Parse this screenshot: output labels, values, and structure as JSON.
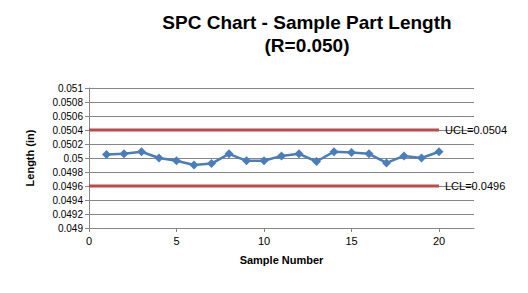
{
  "chart_data": {
    "type": "line",
    "title": "SPC Chart - Sample Part Length",
    "subtitle": "(R=0.050)",
    "x_label": "Sample Number",
    "y_label": "Length (in)",
    "xlim": [
      0,
      22
    ],
    "xticks": [
      0,
      5,
      10,
      15,
      20
    ],
    "ylim": [
      0.049,
      0.051
    ],
    "yticks": [
      0.049,
      0.0492,
      0.0494,
      0.0496,
      0.0498,
      0.05,
      0.0502,
      0.0504,
      0.0506,
      0.0508,
      0.051
    ],
    "grid": true,
    "series": [
      {
        "color": "#4a7ebb",
        "marker": "diamond",
        "line_style": "solid",
        "x": [
          1,
          2,
          3,
          4,
          5,
          6,
          7,
          8,
          9,
          10,
          11,
          12,
          13,
          14,
          15,
          16,
          17,
          18,
          19,
          20
        ],
        "values": [
          0.05005,
          0.05006,
          0.05009,
          0.05,
          0.04996,
          0.0499,
          0.04992,
          0.05006,
          0.04996,
          0.04996,
          0.05003,
          0.05006,
          0.04995,
          0.05009,
          0.05008,
          0.05006,
          0.04993,
          0.05003,
          0.05,
          0.05009
        ]
      },
      {
        "name": "UCL=0.0504",
        "color": "#be4b48",
        "marker": "none",
        "line_style": "solid",
        "x": [
          0,
          20
        ],
        "values": [
          0.0504,
          0.0504
        ]
      },
      {
        "name": "LCL=0.0496",
        "color": "#be4b48",
        "marker": "none",
        "line_style": "solid",
        "x": [
          0,
          20
        ],
        "values": [
          0.0496,
          0.0496
        ]
      }
    ]
  }
}
